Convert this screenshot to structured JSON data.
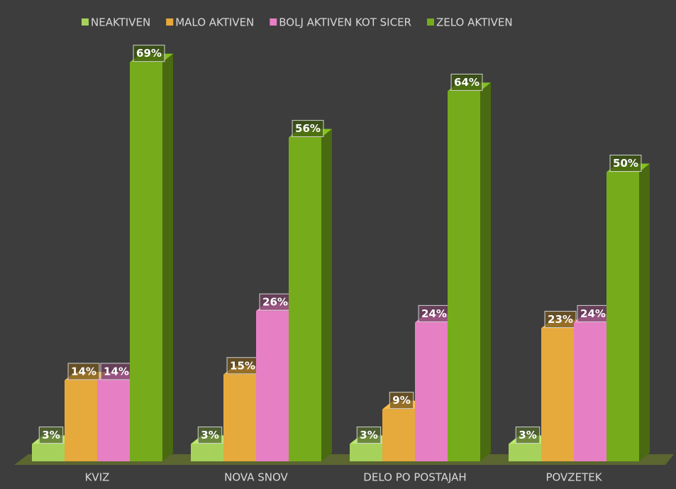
{
  "chart_data": {
    "type": "bar3d",
    "categories": [
      "KVIZ",
      "NOVA SNOV",
      "DELO PO POSTAJAH",
      "POVZETEK"
    ],
    "series": [
      {
        "name": "NEAKTIVEN",
        "color": "#a6d25c",
        "values": [
          3,
          3,
          3,
          3
        ],
        "value_labels": [
          "3%",
          "3%",
          "3%",
          "3%"
        ]
      },
      {
        "name": "MALO AKTIVEN",
        "color": "#e6a93c",
        "values": [
          14,
          15,
          9,
          23
        ],
        "value_labels": [
          "14%",
          "15%",
          "9%",
          "23%"
        ]
      },
      {
        "name": "BOLJ AKTIVEN KOT SICER",
        "color": "#e77fc4",
        "values": [
          14,
          26,
          24,
          24
        ],
        "value_labels": [
          "14%",
          "26%",
          "24%",
          "24%"
        ]
      },
      {
        "name": "ZELO AKTIVEN",
        "color": "#76ab1c",
        "values": [
          69,
          56,
          64,
          50
        ],
        "value_labels": [
          "69%",
          "56%",
          "64%",
          "50%"
        ]
      }
    ]
  }
}
